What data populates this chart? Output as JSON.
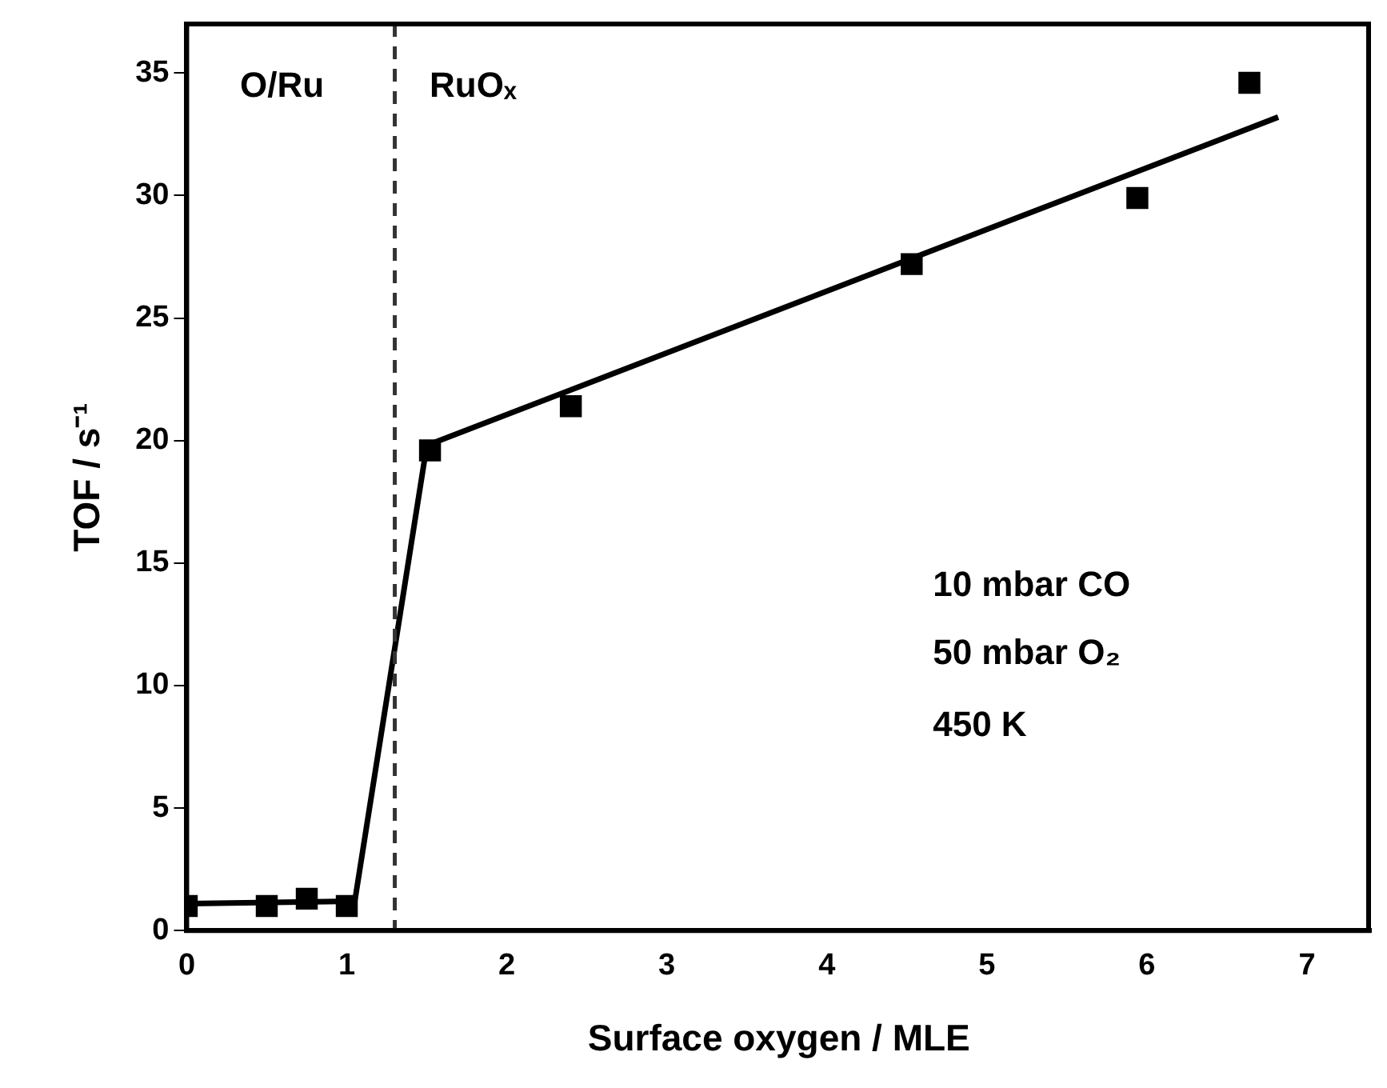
{
  "chart_data": {
    "type": "scatter",
    "xlabel": "Surface oxygen / MLE",
    "ylabel": "TOF / s⁻¹",
    "xlim": [
      0,
      7.4
    ],
    "xticks": [
      0,
      1,
      2,
      3,
      4,
      5,
      6,
      7
    ],
    "ylim": [
      0,
      37
    ],
    "yticks": [
      0,
      5,
      10,
      15,
      20,
      25,
      30,
      35
    ],
    "grid": false,
    "legend": false,
    "series": [
      {
        "type": "scatter",
        "color": "#000000",
        "marker": "square",
        "x": [
          0,
          0.5,
          0.75,
          1,
          1.52,
          2.4,
          4.53,
          5.94,
          6.64
        ],
        "values": [
          1,
          1,
          1.3,
          1,
          19.6,
          21.4,
          27.2,
          29.9,
          34.6
        ]
      },
      {
        "type": "line",
        "color": "#000000",
        "marker": "none",
        "line_style": "solid",
        "x": [
          0,
          1.05,
          1.5,
          6.82
        ],
        "values": [
          1.1,
          1.2,
          19.8,
          33.2
        ]
      }
    ],
    "ref_lines": [
      {
        "axis": "x",
        "value": 1.3,
        "color": "#333333",
        "line_style": "dashed"
      }
    ],
    "annotations": [
      "O/Ru",
      "RuOₓ",
      "10 mbar CO",
      "50 mbar O₂",
      "450 K"
    ]
  }
}
